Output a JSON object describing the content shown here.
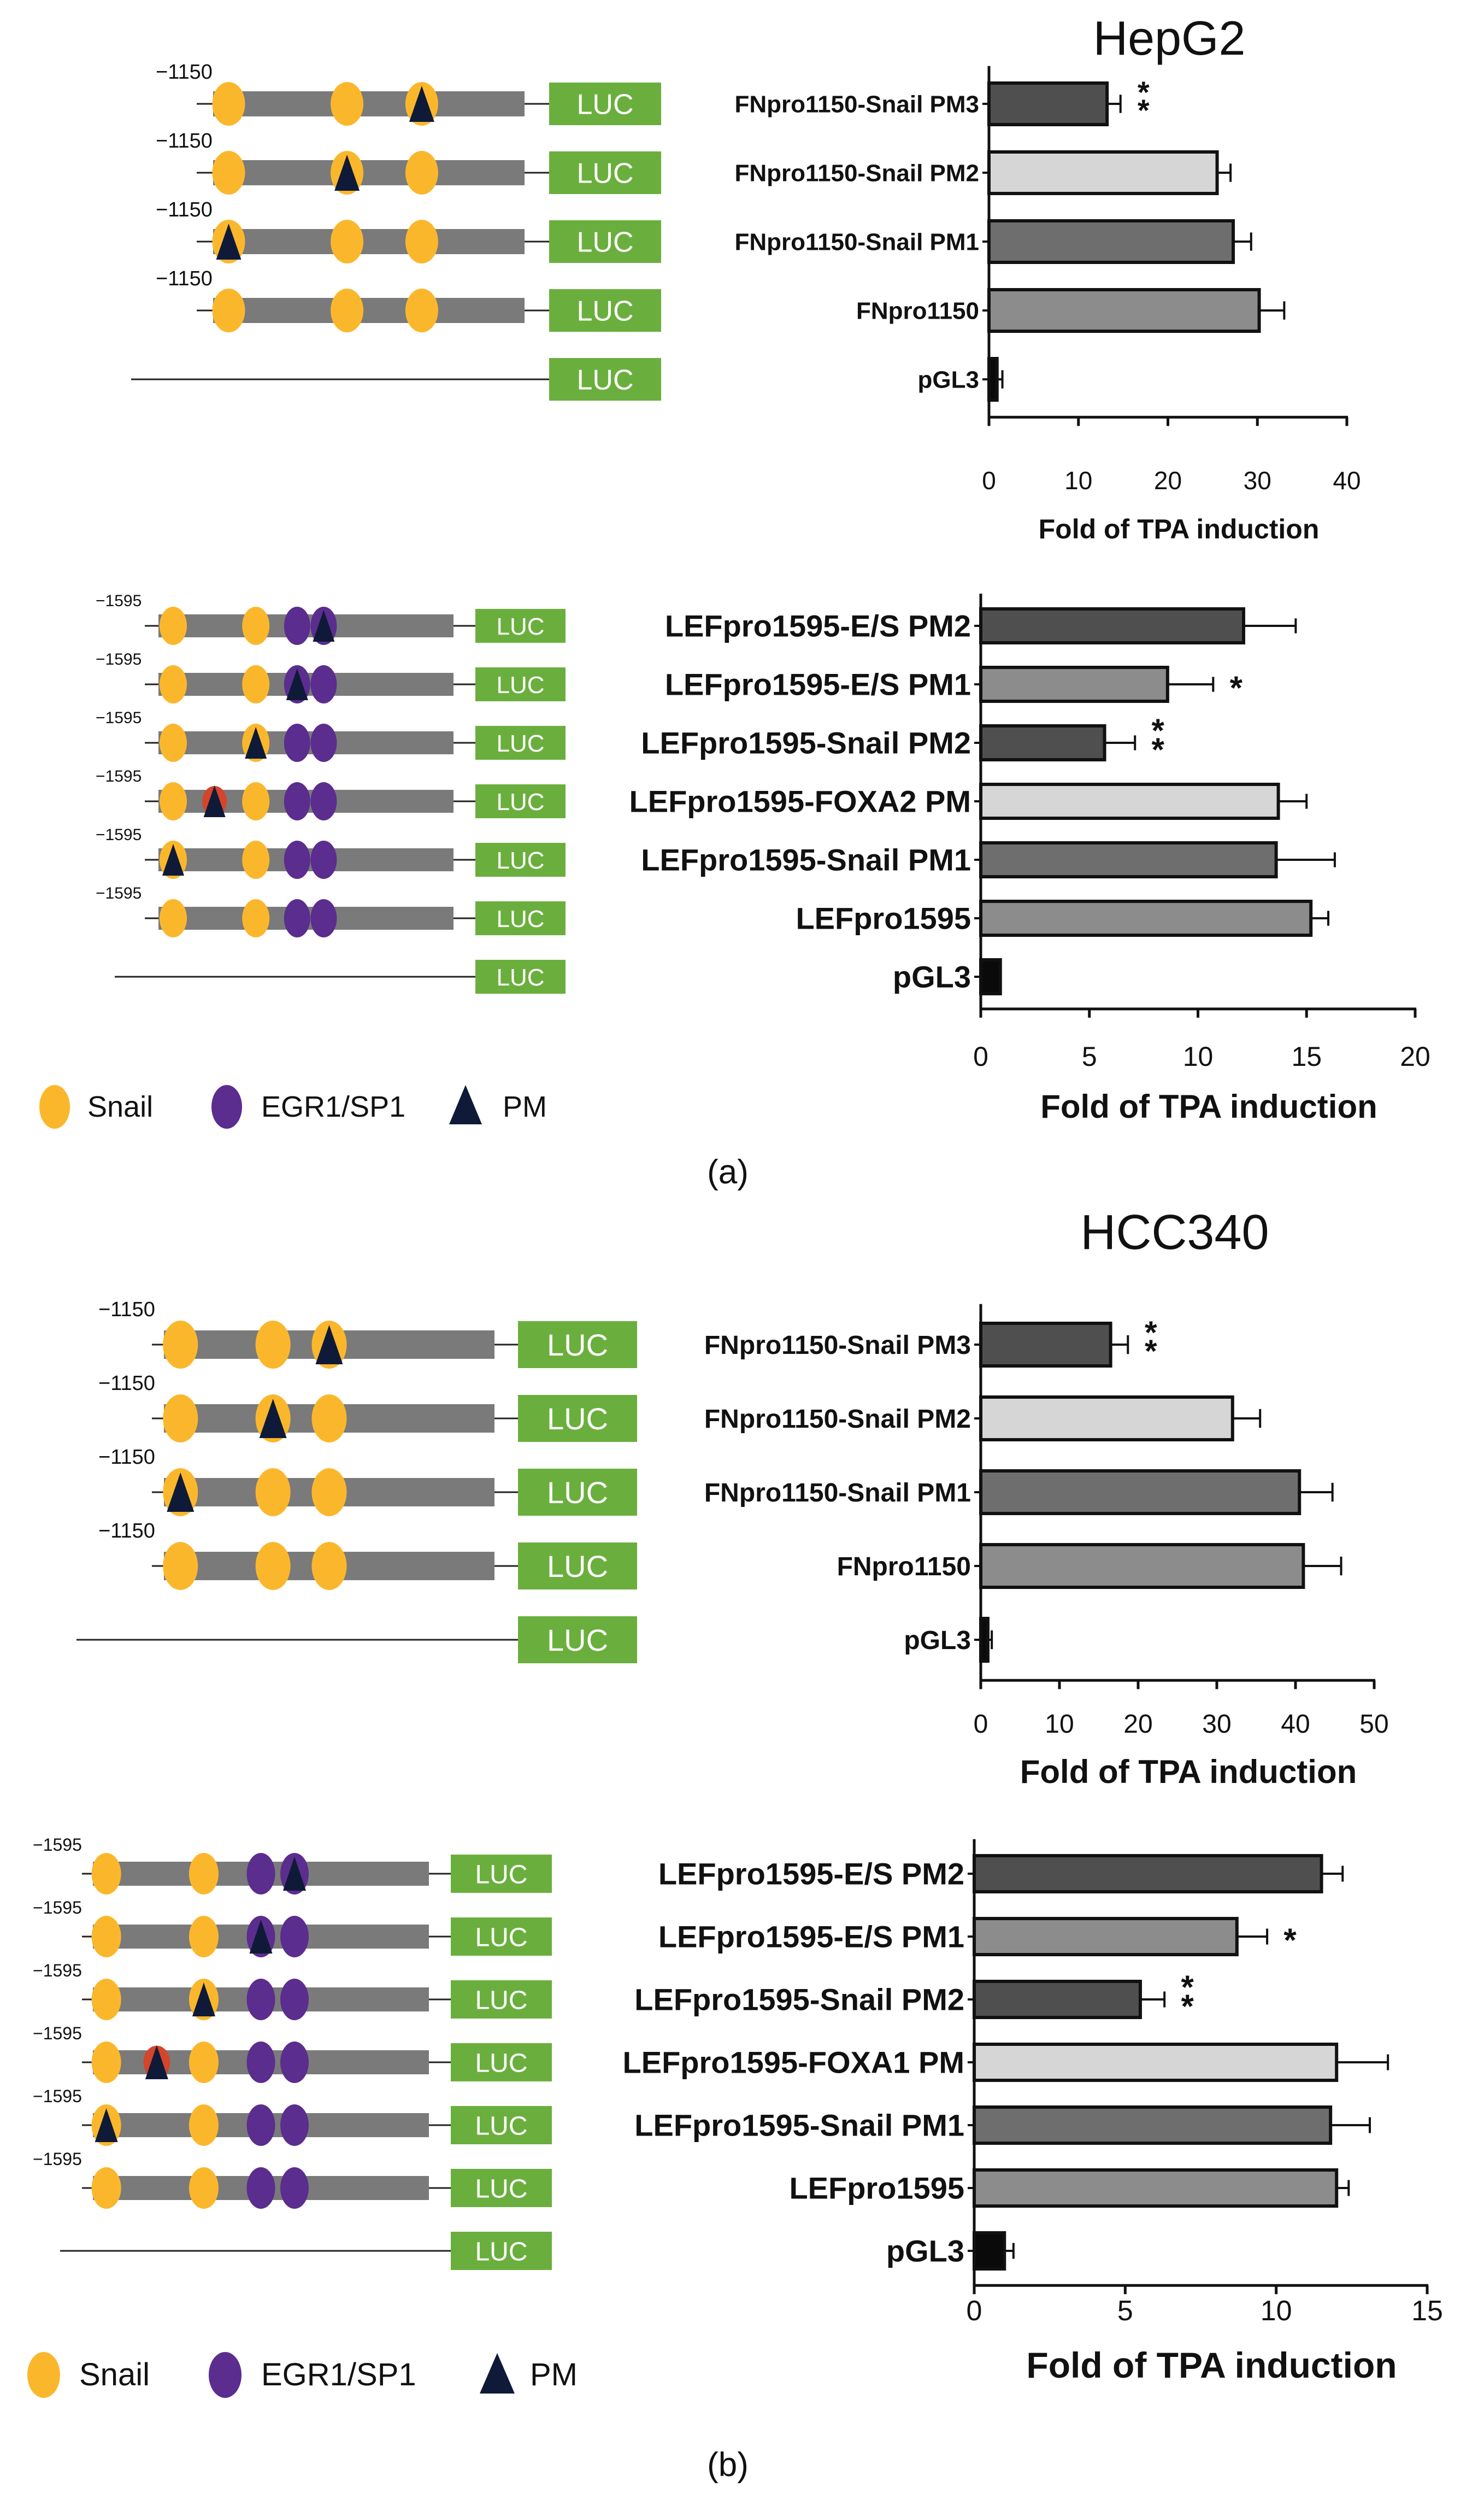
{
  "figure": {
    "panel_a_label": "(a)",
    "panel_b_label": "(b)",
    "legend": {
      "snail": "Snail",
      "egr": "EGR1/SP1",
      "pm": "PM"
    },
    "luc_label": "LUC",
    "fn_start": "−1150",
    "lef_start": "−1595"
  },
  "colors": {
    "snail": "#fbb72c",
    "egr": "#5b2d8e",
    "pm": "#0f1a38",
    "pm_red": "#d4452b",
    "luc": "#6aaf3d",
    "bar_dark": "#4f4f4f",
    "bar_light": "#d6d6d6",
    "bar_mid": "#6e6e6e",
    "bar_grey": "#8c8c8c",
    "bar_black": "#0a0a0a",
    "promoter": "#7a7a7a"
  },
  "chart_data": [
    {
      "type": "bar",
      "orientation": "horizontal",
      "cell_line": "HepG2",
      "title": "HepG2",
      "categories": [
        "FNpro1150-Snail PM3",
        "FNpro1150-Snail PM2",
        "FNpro1150-Snail PM1",
        "FNpro1150",
        "pGL3"
      ],
      "values": [
        13.2,
        25.5,
        27.3,
        30.2,
        0.9
      ],
      "errors": [
        1.5,
        1.5,
        2.0,
        2.8,
        0.6
      ],
      "significance": [
        "**",
        "",
        "",
        "",
        ""
      ],
      "bar_colors": [
        "bar_dark",
        "bar_light",
        "bar_mid",
        "bar_grey",
        "bar_black"
      ],
      "xlabel": "Fold of TPA induction",
      "xlim": [
        0,
        40
      ],
      "xticks": [
        0,
        10,
        20,
        30,
        40
      ],
      "constructs": [
        {
          "snail": [
            0.05,
            0.43,
            0.67
          ],
          "pm": [
            0.67
          ]
        },
        {
          "snail": [
            0.05,
            0.43,
            0.67
          ],
          "pm": [
            0.43
          ]
        },
        {
          "snail": [
            0.05,
            0.43,
            0.67
          ],
          "pm": [
            0.05
          ]
        },
        {
          "snail": [
            0.05,
            0.43,
            0.67
          ],
          "pm": []
        },
        {
          "line_only": true
        }
      ]
    },
    {
      "type": "bar",
      "orientation": "horizontal",
      "cell_line": "HepG2",
      "title": "",
      "categories": [
        "LEFpro1595-E/S PM2",
        "LEFpro1595-E/S PM1",
        "LEFpro1595-Snail PM2",
        "LEFpro1595-FOXA2 PM",
        "LEFpro1595-Snail PM1",
        "LEFpro1595",
        "pGL3"
      ],
      "values": [
        12.1,
        8.6,
        5.7,
        13.7,
        13.6,
        15.2,
        0.9
      ],
      "errors": [
        2.4,
        2.1,
        1.4,
        1.3,
        2.7,
        0.8,
        0.0
      ],
      "significance": [
        "",
        "*",
        "**",
        "",
        "",
        "",
        ""
      ],
      "bar_colors": [
        "bar_dark",
        "bar_grey",
        "bar_dark",
        "bar_light",
        "bar_mid",
        "bar_grey",
        "bar_black"
      ],
      "xlabel": "Fold of TPA induction",
      "xlim": [
        0,
        20
      ],
      "xticks": [
        0,
        5,
        10,
        15,
        20
      ],
      "constructs": [
        {
          "snail": [
            0.05,
            0.33
          ],
          "egr": [
            0.47,
            0.56
          ],
          "pm": [
            0.56
          ]
        },
        {
          "snail": [
            0.05,
            0.33
          ],
          "egr": [
            0.47,
            0.56
          ],
          "pm": [
            0.47
          ]
        },
        {
          "snail": [
            0.05,
            0.33
          ],
          "egr": [
            0.47,
            0.56
          ],
          "pm": [
            0.33
          ]
        },
        {
          "snail": [
            0.05,
            0.33
          ],
          "egr": [
            0.47,
            0.56
          ],
          "pm": [
            0.19
          ],
          "red": [
            0.19
          ]
        },
        {
          "snail": [
            0.05,
            0.33
          ],
          "egr": [
            0.47,
            0.56
          ],
          "pm": [
            0.05
          ]
        },
        {
          "snail": [
            0.05,
            0.33
          ],
          "egr": [
            0.47,
            0.56
          ],
          "pm": []
        },
        {
          "line_only": true
        }
      ]
    },
    {
      "type": "bar",
      "orientation": "horizontal",
      "cell_line": "HCC340",
      "title": "HCC340",
      "categories": [
        "FNpro1150-Snail PM3",
        "FNpro1150-Snail PM2",
        "FNpro1150-Snail PM1",
        "FNpro1150",
        "pGL3"
      ],
      "values": [
        16.5,
        32.0,
        40.5,
        41.0,
        0.9
      ],
      "errors": [
        2.2,
        3.5,
        4.2,
        4.8,
        0.5
      ],
      "significance": [
        "**",
        "",
        "",
        "",
        ""
      ],
      "bar_colors": [
        "bar_dark",
        "bar_light",
        "bar_mid",
        "bar_grey",
        "bar_black"
      ],
      "xlabel": "Fold of TPA induction",
      "xlim": [
        0,
        50
      ],
      "xticks": [
        0,
        10,
        20,
        30,
        40,
        50
      ],
      "constructs": [
        {
          "snail": [
            0.05,
            0.33,
            0.5
          ],
          "pm": [
            0.5
          ]
        },
        {
          "snail": [
            0.05,
            0.33,
            0.5
          ],
          "pm": [
            0.33
          ]
        },
        {
          "snail": [
            0.05,
            0.33,
            0.5
          ],
          "pm": [
            0.05
          ]
        },
        {
          "snail": [
            0.05,
            0.33,
            0.5
          ],
          "pm": []
        },
        {
          "line_only": true
        }
      ]
    },
    {
      "type": "bar",
      "orientation": "horizontal",
      "cell_line": "HCC340",
      "title": "",
      "categories": [
        "LEFpro1595-E/S PM2",
        "LEFpro1595-E/S PM1",
        "LEFpro1595-Snail PM2",
        "LEFpro1595-FOXA1 PM",
        "LEFpro1595-Snail PM1",
        "LEFpro1595",
        "pGL3"
      ],
      "values": [
        11.5,
        8.7,
        5.5,
        12.0,
        11.8,
        12.0,
        1.0
      ],
      "errors": [
        0.7,
        1.0,
        0.8,
        1.7,
        1.3,
        0.4,
        0.3
      ],
      "significance": [
        "",
        "*",
        "**",
        "",
        "",
        "",
        ""
      ],
      "bar_colors": [
        "bar_dark",
        "bar_grey",
        "bar_dark",
        "bar_light",
        "bar_mid",
        "bar_grey",
        "bar_black"
      ],
      "xlabel": "Fold of TPA induction",
      "xlim": [
        0,
        15
      ],
      "xticks": [
        0,
        5,
        10,
        15
      ],
      "constructs": [
        {
          "snail": [
            0.04,
            0.33
          ],
          "egr": [
            0.5,
            0.6
          ],
          "pm": [
            0.6
          ]
        },
        {
          "snail": [
            0.04,
            0.33
          ],
          "egr": [
            0.5,
            0.6
          ],
          "pm": [
            0.5
          ]
        },
        {
          "snail": [
            0.04,
            0.33
          ],
          "egr": [
            0.5,
            0.6
          ],
          "pm": [
            0.33
          ]
        },
        {
          "snail": [
            0.04,
            0.33
          ],
          "egr": [
            0.5,
            0.6
          ],
          "pm": [
            0.19
          ],
          "red": [
            0.19
          ]
        },
        {
          "snail": [
            0.04,
            0.33
          ],
          "egr": [
            0.5,
            0.6
          ],
          "pm": [
            0.04
          ]
        },
        {
          "snail": [
            0.04,
            0.33
          ],
          "egr": [
            0.5,
            0.6
          ],
          "pm": []
        },
        {
          "line_only": true
        }
      ]
    }
  ]
}
